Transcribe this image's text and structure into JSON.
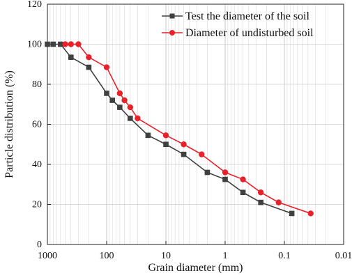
{
  "chart_data": {
    "type": "line",
    "title": "",
    "xlabel": "Grain diameter (mm)",
    "ylabel": "Particle distribution (%)",
    "xscale": "log",
    "xaxis_reversed": true,
    "xlim": [
      1000,
      0.01
    ],
    "ylim": [
      0,
      120
    ],
    "x_ticks": [
      1000,
      100,
      10,
      1,
      0.1,
      0.01
    ],
    "x_tick_labels": [
      "1000",
      "100",
      "10",
      "1",
      "0.1",
      "0.01"
    ],
    "y_ticks": [
      0,
      20,
      40,
      60,
      80,
      100,
      120
    ],
    "y_tick_labels": [
      "0",
      "20",
      "40",
      "60",
      "80",
      "100",
      "120"
    ],
    "grid": "vertical minor and major lines; horizontal major lines",
    "legend_position": "top-right",
    "series": [
      {
        "name": "Test the diameter of the soil",
        "color": "#404040",
        "marker": "square",
        "points": [
          [
            1000,
            100
          ],
          [
            800,
            100
          ],
          [
            600,
            100
          ],
          [
            400,
            93.5
          ],
          [
            200,
            88.5
          ],
          [
            100,
            75.5
          ],
          [
            80,
            72
          ],
          [
            60,
            68.5
          ],
          [
            40,
            63
          ],
          [
            20,
            54.5
          ],
          [
            10,
            50
          ],
          [
            5,
            45
          ],
          [
            2,
            36
          ],
          [
            1,
            32.5
          ],
          [
            0.5,
            26
          ],
          [
            0.25,
            21
          ],
          [
            0.075,
            15.5
          ]
        ]
      },
      {
        "name": "Diameter of undisturbed soil",
        "color": "#e8222a",
        "marker": "circle",
        "points": [
          [
            500,
            100
          ],
          [
            400,
            100
          ],
          [
            300,
            100
          ],
          [
            200,
            93.5
          ],
          [
            100,
            88.5
          ],
          [
            60,
            75.5
          ],
          [
            50,
            72
          ],
          [
            40,
            68.5
          ],
          [
            30,
            63
          ],
          [
            10,
            54.5
          ],
          [
            5,
            50
          ],
          [
            2.5,
            45
          ],
          [
            1,
            36
          ],
          [
            0.5,
            32.5
          ],
          [
            0.25,
            26
          ],
          [
            0.125,
            21
          ],
          [
            0.036,
            15.5
          ]
        ]
      }
    ]
  }
}
